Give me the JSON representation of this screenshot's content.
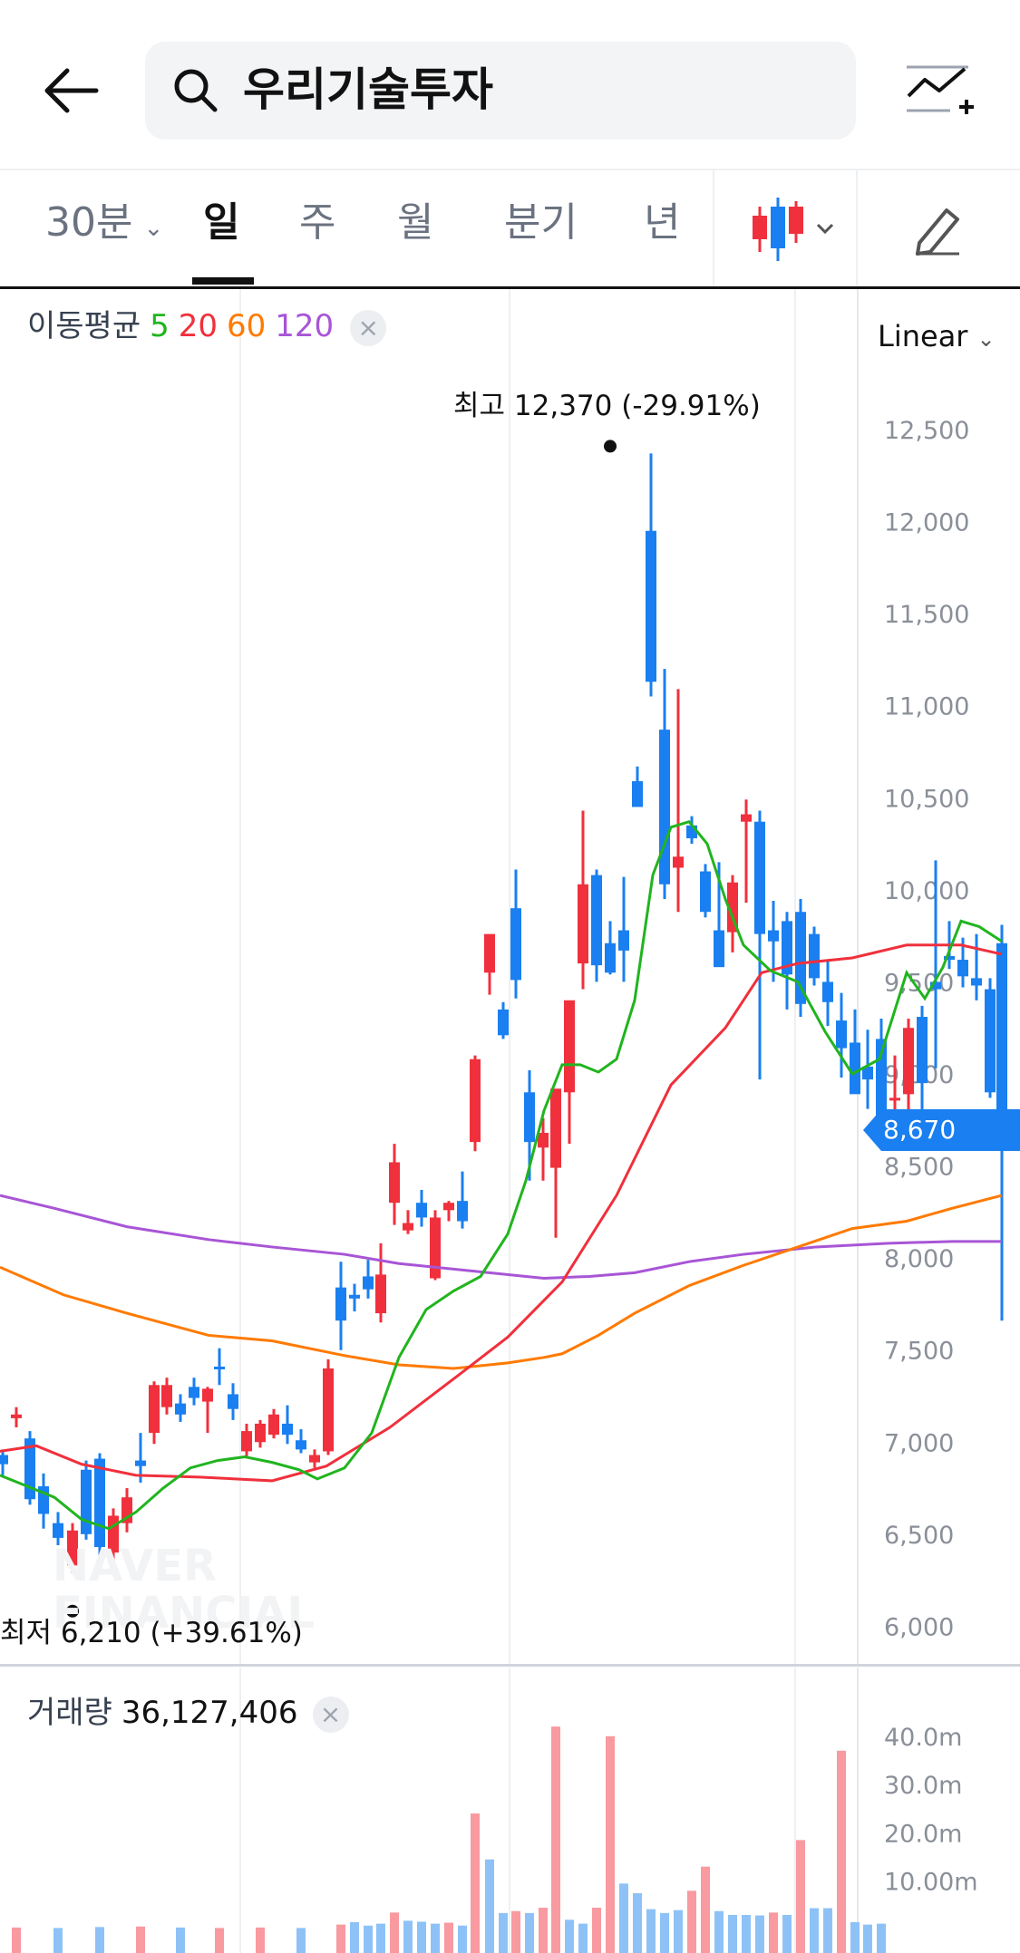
{
  "search": {
    "query": "우리기술투자"
  },
  "tabs": {
    "interval": "30분",
    "periods": [
      "일",
      "주",
      "월",
      "분기",
      "년"
    ],
    "active": "일"
  },
  "moving_average": {
    "label": "이동평균",
    "periods": [
      {
        "value": "5",
        "color": "#21b41f"
      },
      {
        "value": "20",
        "color": "#f0303c"
      },
      {
        "value": "60",
        "color": "#ff7a00"
      },
      {
        "value": "120",
        "color": "#a855d6"
      }
    ]
  },
  "scale_mode": "Linear",
  "price_axis": [
    "12,500",
    "12,000",
    "11,500",
    "11,000",
    "10,500",
    "10,000",
    "9,500",
    "9,000",
    "8,500",
    "8,000",
    "7,500",
    "7,000",
    "6,500",
    "6,000"
  ],
  "current_price": "8,670",
  "high_annotation": {
    "label": "최고",
    "value": "12,370 (-29.91%)"
  },
  "low_annotation": {
    "label": "최저",
    "value": "6,210 (+39.61%)"
  },
  "watermark": [
    "NAVER",
    "FINANCIAL"
  ],
  "volume": {
    "label": "거래량",
    "value": "36,127,406",
    "axis": [
      "40.0m",
      "30.0m",
      "20.0m",
      "10.00m"
    ]
  },
  "colors": {
    "up": "#f0303c",
    "down": "#1a7ff0",
    "accent": "#1a7ff0"
  }
}
